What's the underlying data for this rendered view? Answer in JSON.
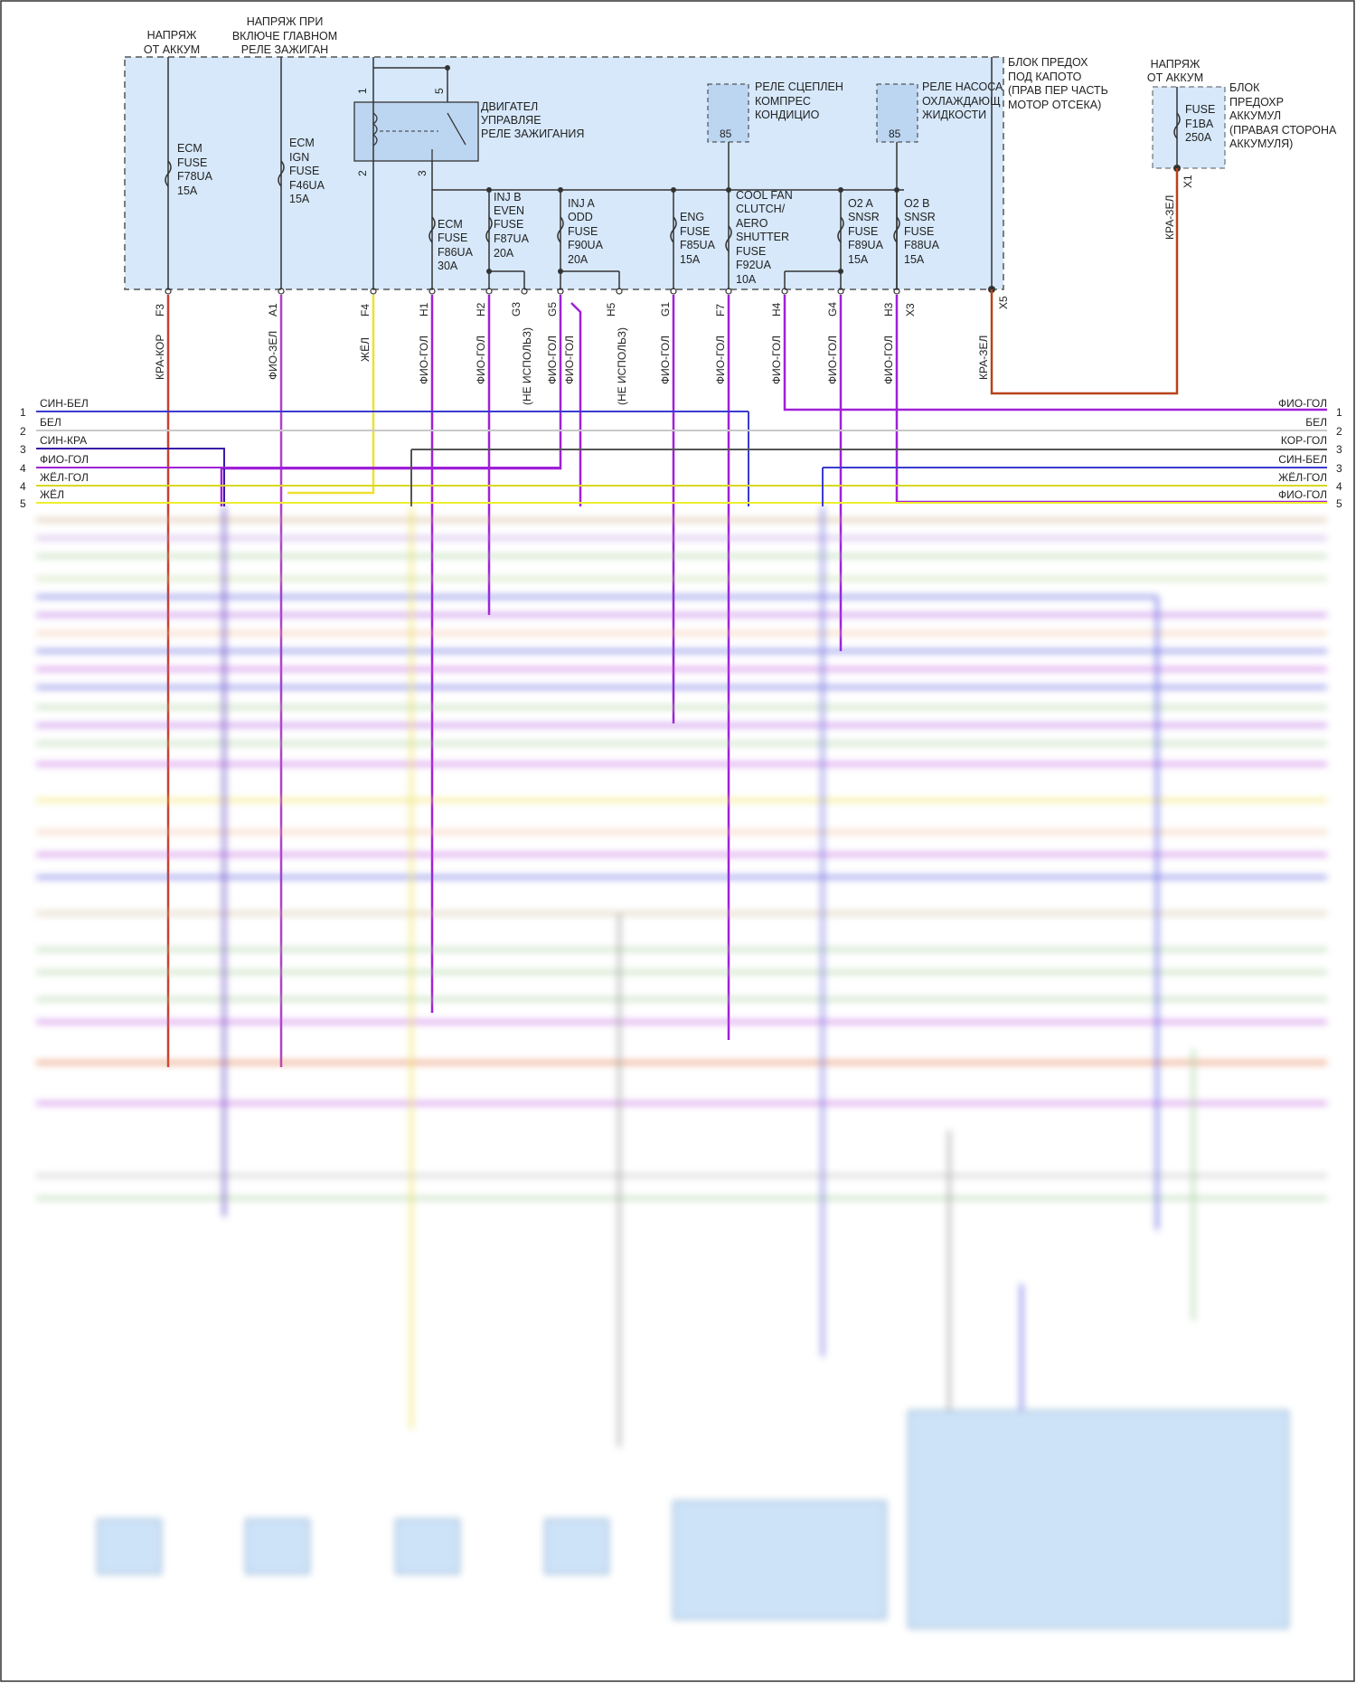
{
  "power_labels": {
    "batt_left": [
      "НАПРЯЖ",
      "ОТ АККУМ"
    ],
    "ign": [
      "НАПРЯЖ ПРИ",
      "ВКЛЮЧЕ ГЛАВНОМ",
      "РЕЛЕ ЗАЖИГАН"
    ],
    "batt_right": [
      "НАПРЯЖ",
      "ОТ АККУМ"
    ]
  },
  "fuse_block_main": {
    "title": [
      "БЛОК ПРЕДОХ",
      "ПОД КАПОТО",
      "(ПРАВ ПЕР ЧАСТЬ",
      "МОТОР ОТСЕКА)"
    ],
    "relay_main": [
      "ДВИГАТЕЛ",
      "УПРАВЛЯЕ",
      "РЕЛЕ ЗАЖИГАНИЯ"
    ],
    "relay_ac": [
      "РЕЛЕ СЦЕПЛЕН",
      "КОМПРЕС",
      "КОНДИЦИО"
    ],
    "relay_pump": [
      "РЕЛЕ НАСОСА",
      "ОХЛАЖДАЮЩ",
      "ЖИДКОСТИ"
    ],
    "relay_pin": "85",
    "relay_pins": [
      "1",
      "5",
      "2",
      "3"
    ],
    "fuses": [
      [
        "ECM",
        "FUSE",
        "F78UA",
        "15A"
      ],
      [
        "ECM",
        "IGN",
        "FUSE",
        "F46UA",
        "15A"
      ],
      [
        "ECM",
        "FUSE",
        "F86UA",
        "30A"
      ],
      [
        "INJ B",
        "EVEN",
        "FUSE",
        "F87UA",
        "20A"
      ],
      [
        "INJ A",
        "ODD",
        "FUSE",
        "F90UA",
        "20A"
      ],
      [
        "ENG",
        "FUSE",
        "F85UA",
        "15A"
      ],
      [
        "COOL FAN",
        "CLUTCH/",
        "AERO",
        "SHUTTER",
        "FUSE",
        "F92UA",
        "10A"
      ],
      [
        "O2 A",
        "SNSR",
        "FUSE",
        "F89UA",
        "15A"
      ],
      [
        "O2 B",
        "SNSR",
        "FUSE",
        "F88UA",
        "15A"
      ]
    ]
  },
  "fuse_block_battery": {
    "title": [
      "БЛОК",
      "ПРЕДОХР",
      "АККУМУЛ",
      "(ПРАВАЯ СТОРОНА",
      "АККУМУЛЯ)"
    ],
    "fuse": [
      "FUSE",
      "F1BA",
      "250A"
    ],
    "pin": "X1",
    "wire": "КРА-ЗЕЛ"
  },
  "pins": [
    "F3",
    "A1",
    "F4",
    "H1",
    "H2",
    "G3",
    "G5",
    "H5",
    "G1",
    "F7",
    "H4",
    "G4",
    "H3",
    "X3",
    "X5"
  ],
  "pin_wires": [
    "КРА-КОР",
    "ФИО-ЗЕЛ",
    "ЖЁЛ",
    "ФИО-ГОЛ",
    "ФИО-ГОЛ",
    "(НЕ ИСПОЛЬЗ)",
    "ФИО-ГОЛ",
    "ФИО-ГОЛ",
    "(НЕ ИСПОЛЬЗ)",
    "ФИО-ГОЛ",
    "ФИО-ГОЛ",
    "ФИО-ГОЛ",
    "ФИО-ГОЛ",
    "ФИО-ГОЛ",
    "КРА-ЗЕЛ"
  ],
  "bus_left": [
    {
      "n": "1",
      "label": "СИН-БЕЛ",
      "color": "#3b3bd0"
    },
    {
      "n": "2",
      "label": "БЕЛ",
      "color": "#c8c8c8"
    },
    {
      "n": "3",
      "label": "СИН-КРА",
      "color": "#3a1aa8"
    },
    {
      "n": "4",
      "label": "ФИО-ГОЛ",
      "color": "#a020d8"
    },
    {
      "n": "4",
      "label": "ЖЁЛ-ГОЛ",
      "color": "#d8d820"
    },
    {
      "n": "5",
      "label": "ЖЁЛ",
      "color": "#eeee30"
    }
  ],
  "bus_right": [
    {
      "n": "1",
      "label": "ФИО-ГОЛ",
      "color": "#a020d8"
    },
    {
      "n": "2",
      "label": "БЕЛ",
      "color": "#c8c8c8"
    },
    {
      "n": "3",
      "label": "КОР-ГОЛ",
      "color": "#555555"
    },
    {
      "n": "3",
      "label": "СИН-БЕЛ",
      "color": "#3b3bd0"
    },
    {
      "n": "4",
      "label": "ЖЁЛ-ГОЛ",
      "color": "#d8d820"
    },
    {
      "n": "5",
      "label": "ФИО-ГОЛ",
      "color": "#a020d8"
    }
  ],
  "colors": {
    "block_fill": "#d6e8fa",
    "block_stroke": "#555555",
    "red": "#c02020",
    "purple": "#a020d8",
    "yellow": "#f0e030",
    "orange_red": "#b8421a"
  }
}
